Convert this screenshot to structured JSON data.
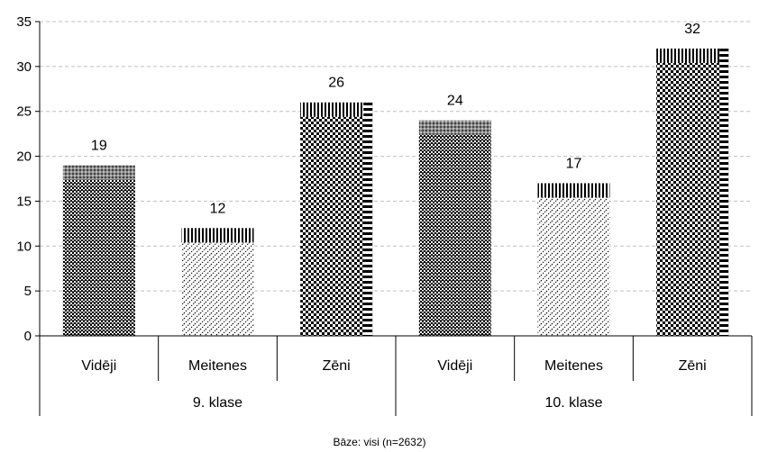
{
  "chart_data": {
    "type": "bar",
    "ylim": [
      0,
      35
    ],
    "yticks": [
      0,
      5,
      10,
      15,
      20,
      25,
      30,
      35
    ],
    "grid": true,
    "groups": [
      {
        "label": "9. klase",
        "categories": [
          "Vidēji",
          "Meitenes",
          "Zēni"
        ],
        "values": [
          19,
          12,
          26
        ]
      },
      {
        "label": "10. klase",
        "categories": [
          "Vidēji",
          "Meitenes",
          "Zēni"
        ],
        "values": [
          24,
          17,
          32
        ]
      }
    ],
    "bars": [
      {
        "group": "9. klase",
        "category": "Vidēji",
        "value": 19,
        "pattern": "checker-tight"
      },
      {
        "group": "9. klase",
        "category": "Meitenes",
        "value": 12,
        "pattern": "diag-dots"
      },
      {
        "group": "9. klase",
        "category": "Zēni",
        "value": 26,
        "pattern": "checker"
      },
      {
        "group": "10. klase",
        "category": "Vidēji",
        "value": 24,
        "pattern": "checker-tight"
      },
      {
        "group": "10. klase",
        "category": "Meitenes",
        "value": 17,
        "pattern": "diag-dots"
      },
      {
        "group": "10. klase",
        "category": "Zēni",
        "value": 32,
        "pattern": "checker"
      }
    ],
    "colors": {
      "bar": "#000000",
      "grid": "#c0c0c0",
      "axis": "#000000",
      "background": "#ffffff"
    }
  },
  "footer": {
    "base_note": "Bāze: visi (n=2632)"
  }
}
